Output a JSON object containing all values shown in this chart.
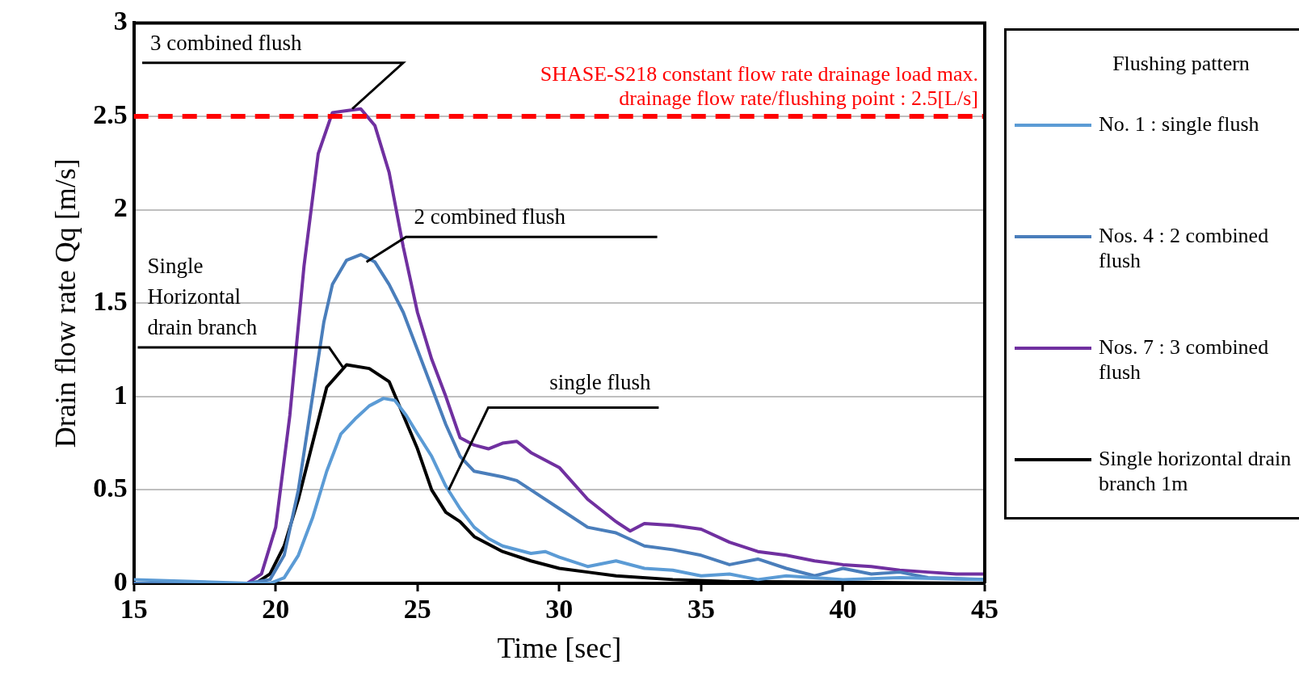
{
  "chart_data": {
    "type": "line",
    "xlabel": "Time [sec]",
    "ylabel": "Drain flow rate Qq [m/s]",
    "legend_title": "Flushing pattern",
    "xlim": [
      15,
      45
    ],
    "xticks": [
      15,
      20,
      25,
      30,
      35,
      40,
      45
    ],
    "ylim": [
      0,
      3
    ],
    "yticks": [
      0,
      0.5,
      1,
      1.5,
      2,
      2.5,
      3
    ],
    "grid": "y",
    "legend": "right",
    "marker": "none",
    "line_style": "solid",
    "series": [
      {
        "name": "No. 1 : single flush",
        "color": "#5b9bd5",
        "x": [
          15,
          19,
          19.8,
          20.3,
          20.8,
          21.3,
          21.8,
          22.3,
          22.8,
          23.3,
          23.8,
          24.2,
          24.6,
          25,
          25.5,
          26,
          26.5,
          27,
          27.5,
          28,
          29,
          29.5,
          30,
          31,
          32,
          33,
          34,
          35,
          36,
          37,
          38,
          40,
          42,
          45
        ],
        "values": [
          0.02,
          0,
          0,
          0.03,
          0.15,
          0.35,
          0.6,
          0.8,
          0.88,
          0.95,
          0.99,
          0.98,
          0.9,
          0.8,
          0.68,
          0.52,
          0.4,
          0.3,
          0.24,
          0.2,
          0.16,
          0.17,
          0.14,
          0.09,
          0.12,
          0.08,
          0.07,
          0.04,
          0.05,
          0.02,
          0.04,
          0.02,
          0.03,
          0.02
        ]
      },
      {
        "name": "Nos. 4 : 2 combined flush",
        "color": "#4a7ebb",
        "x": [
          15,
          19,
          19.8,
          20.3,
          20.8,
          21.3,
          21.7,
          22,
          22.5,
          23,
          23.5,
          24,
          24.5,
          25,
          25.5,
          26,
          26.5,
          27,
          28,
          28.5,
          29,
          30,
          31,
          32,
          33,
          34,
          35,
          36,
          37,
          38,
          39,
          40,
          41,
          42,
          43,
          45
        ],
        "values": [
          0,
          0,
          0.02,
          0.15,
          0.5,
          1.0,
          1.4,
          1.6,
          1.73,
          1.76,
          1.72,
          1.6,
          1.45,
          1.25,
          1.05,
          0.85,
          0.68,
          0.6,
          0.57,
          0.55,
          0.5,
          0.4,
          0.3,
          0.27,
          0.2,
          0.18,
          0.15,
          0.1,
          0.13,
          0.08,
          0.04,
          0.08,
          0.05,
          0.06,
          0.03,
          0.02
        ]
      },
      {
        "name": "Nos. 7 : 3 combined flush",
        "color": "#7030a0",
        "x": [
          15,
          19,
          19.5,
          20,
          20.5,
          21,
          21.5,
          22,
          22.5,
          23,
          23.5,
          24,
          24.5,
          25,
          25.5,
          26,
          26.5,
          27,
          27.5,
          28,
          28.5,
          29,
          30,
          31,
          32,
          32.5,
          33,
          34,
          35,
          36,
          37,
          38,
          39,
          40,
          41,
          42,
          43,
          44,
          45
        ],
        "values": [
          0,
          0,
          0.05,
          0.3,
          0.9,
          1.7,
          2.3,
          2.52,
          2.53,
          2.54,
          2.45,
          2.2,
          1.8,
          1.45,
          1.2,
          1.0,
          0.78,
          0.74,
          0.72,
          0.75,
          0.76,
          0.7,
          0.62,
          0.45,
          0.33,
          0.28,
          0.32,
          0.31,
          0.29,
          0.22,
          0.17,
          0.15,
          0.12,
          0.1,
          0.09,
          0.07,
          0.06,
          0.05,
          0.05
        ]
      },
      {
        "name": "Single horizontal drain branch 1m",
        "color": "#000000",
        "x": [
          15,
          19.3,
          19.8,
          20.3,
          20.8,
          21.3,
          21.8,
          22.5,
          23.3,
          24,
          24.5,
          25,
          25.5,
          26,
          26.5,
          27,
          28,
          29,
          30,
          31,
          32,
          34,
          36,
          45
        ],
        "values": [
          0,
          0,
          0.05,
          0.2,
          0.45,
          0.75,
          1.05,
          1.17,
          1.15,
          1.08,
          0.9,
          0.72,
          0.5,
          0.38,
          0.33,
          0.25,
          0.17,
          0.12,
          0.08,
          0.06,
          0.04,
          0.02,
          0.01,
          0
        ]
      }
    ],
    "ref_lines": [
      {
        "axis": "y",
        "value": 2.5,
        "label": "SHASE-S218 constant flow rate drainage load max. drainage flow rate/flushing point : 2.5[L/s]",
        "color": "#ff0000",
        "line_style": "dashed"
      }
    ],
    "annotations": [
      {
        "text": "3 combined flush",
        "x": 22.7,
        "y": 2.54
      },
      {
        "text": "2 combined flush",
        "x": 23.2,
        "y": 1.72
      },
      {
        "text": "Single Horizontal drain branch",
        "x": 22.4,
        "y": 1.15
      },
      {
        "text": "single flush",
        "x": 26.1,
        "y": 0.5
      }
    ]
  }
}
